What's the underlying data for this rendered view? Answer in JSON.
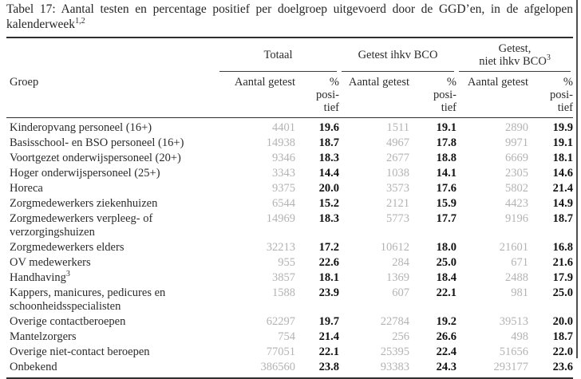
{
  "title": {
    "line1": "Tabel 17: Aantal testen en percentage positief per doelgroep uitgevoerd door de GGD’en, in de afgelopen",
    "line2": "kalenderweek",
    "footnote_marks": "1,2"
  },
  "table": {
    "group_col_header": "Groep",
    "col_groups": [
      {
        "line1": "Totaal",
        "line2": "",
        "sup": ""
      },
      {
        "line1": "Getest ihkv BCO",
        "line2": "",
        "sup": ""
      },
      {
        "line1": "Getest,",
        "line2": "niet ihkv BCO",
        "sup": "3"
      }
    ],
    "sub_headers": {
      "count": "Aantal getest",
      "pct_line1": "%",
      "pct_line2": "posi-",
      "pct_line3": "tief"
    },
    "rows": [
      {
        "label": "Kinderopvang personeel (16+)",
        "values": [
          "4401",
          "19.6",
          "1511",
          "19.1",
          "2890",
          "19.9"
        ]
      },
      {
        "label": "Basisschool- en BSO personeel (16+)",
        "values": [
          "14938",
          "18.7",
          "4967",
          "17.8",
          "9971",
          "19.1"
        ]
      },
      {
        "label": "Voortgezet onderwijspersoneel (20+)",
        "values": [
          "9346",
          "18.3",
          "2677",
          "18.8",
          "6669",
          "18.1"
        ]
      },
      {
        "label": "Hoger onderwijspersoneel (25+)",
        "values": [
          "3343",
          "14.4",
          "1038",
          "14.1",
          "2305",
          "14.6"
        ]
      },
      {
        "label": "Horeca",
        "values": [
          "9375",
          "20.0",
          "3573",
          "17.6",
          "5802",
          "21.4"
        ]
      },
      {
        "label": "Zorgmedewerkers ziekenhuizen",
        "values": [
          "6544",
          "15.2",
          "2121",
          "15.9",
          "4423",
          "14.9"
        ]
      },
      {
        "label": "Zorgmedewerkers verpleeg- of verzorgingshuizen",
        "values": [
          "14969",
          "18.3",
          "5773",
          "17.7",
          "9196",
          "18.7"
        ]
      },
      {
        "label": "Zorgmedewerkers elders",
        "values": [
          "32213",
          "17.2",
          "10612",
          "18.0",
          "21601",
          "16.8"
        ]
      },
      {
        "label": "OV medewerkers",
        "values": [
          "955",
          "22.6",
          "284",
          "25.0",
          "671",
          "21.6"
        ]
      },
      {
        "label": "Handhaving",
        "sup": "3",
        "values": [
          "3857",
          "18.1",
          "1369",
          "18.4",
          "2488",
          "17.9"
        ]
      },
      {
        "label": "Kappers, manicures, pedicures en schoonheidsspecialisten",
        "values": [
          "1588",
          "23.9",
          "607",
          "22.1",
          "981",
          "25.0"
        ]
      },
      {
        "label": "Overige contactberoepen",
        "values": [
          "62297",
          "19.7",
          "22784",
          "19.2",
          "39513",
          "20.0"
        ]
      },
      {
        "label": "Mantelzorgers",
        "values": [
          "754",
          "21.4",
          "256",
          "26.6",
          "498",
          "18.7"
        ]
      },
      {
        "label": "Overige niet-contact beroepen",
        "values": [
          "77051",
          "22.1",
          "25395",
          "22.4",
          "51656",
          "22.0"
        ]
      },
      {
        "label": "Onbekend",
        "values": [
          "386560",
          "23.8",
          "93383",
          "24.3",
          "293177",
          "23.6"
        ]
      }
    ]
  },
  "colors": {
    "count_text": "#b3b3b3",
    "pct_text": "#111111",
    "rule": "#2e2e2e",
    "page_border": "#4e4e4e"
  }
}
